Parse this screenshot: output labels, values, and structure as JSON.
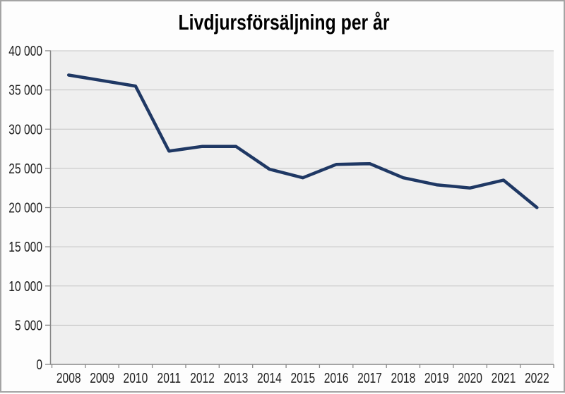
{
  "window": {
    "background": "#fdfdfd",
    "border_color": "#a4a4a4"
  },
  "chart_data": {
    "type": "line",
    "title": "Livdjursförsäljning per år",
    "categories": [
      "2008",
      "2009",
      "2010",
      "2011",
      "2012",
      "2013",
      "2014",
      "2015",
      "2016",
      "2017",
      "2018",
      "2019",
      "2020",
      "2021",
      "2022"
    ],
    "values": [
      36900,
      36200,
      35500,
      27200,
      27800,
      27800,
      24900,
      23800,
      25500,
      25600,
      23800,
      22900,
      22500,
      23500,
      20000
    ],
    "xlabel": "",
    "ylabel": "",
    "ylim": [
      0,
      40000
    ],
    "y_tick_step": 5000,
    "y_tick_labels": [
      "0",
      "5 000",
      "10 000",
      "15 000",
      "20 000",
      "25 000",
      "30 000",
      "35 000",
      "40 000"
    ],
    "grid": true,
    "legend": "none",
    "line_color": "#1f3864",
    "plot_background": "#efefef",
    "gridline_color": "#c3c3c3",
    "axis_color": "#888888",
    "label_color": "#1f1f1f",
    "title_color": "#000000"
  }
}
